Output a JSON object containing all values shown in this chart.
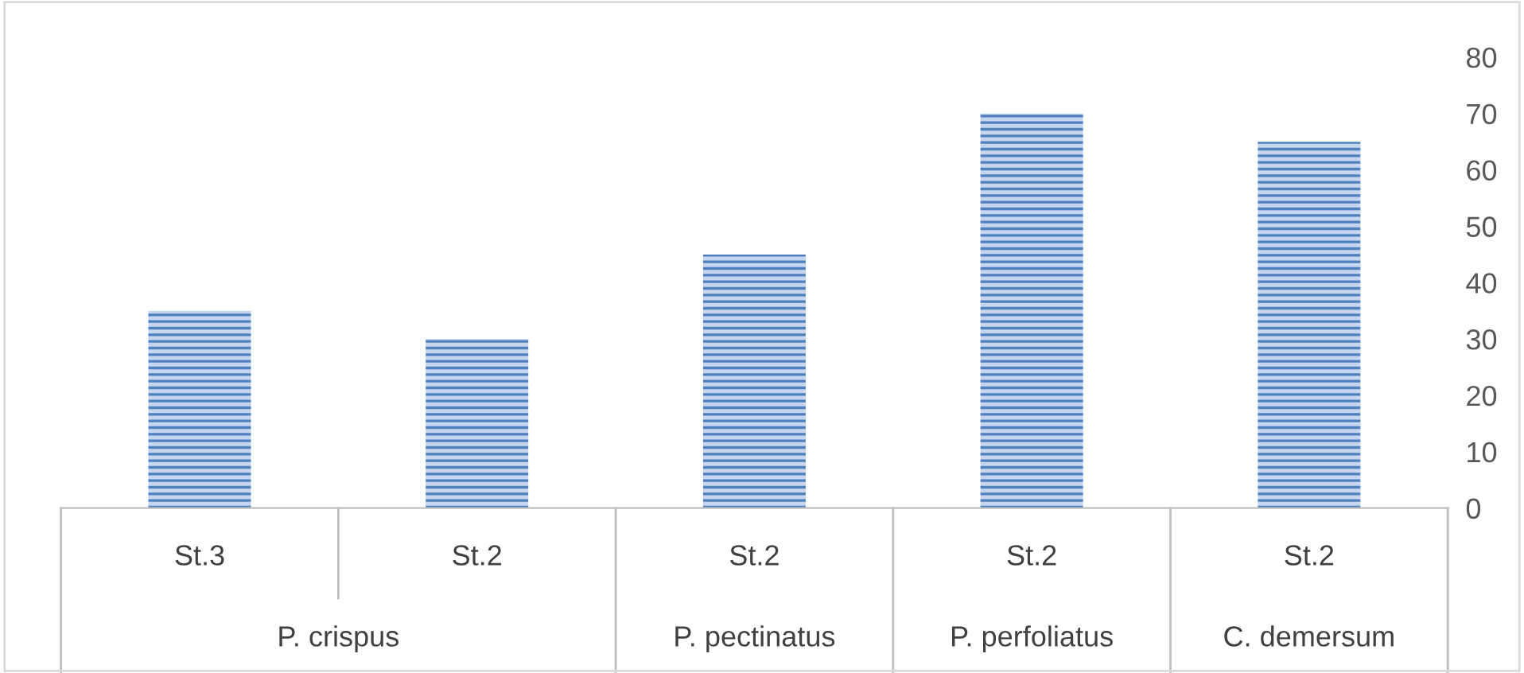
{
  "chart_data": {
    "type": "bar",
    "categories": [
      "St.3",
      "St.2",
      "St.2",
      "St.2",
      "St.2"
    ],
    "values": [
      35,
      30,
      45,
      70,
      65
    ],
    "color": "#4f81bd",
    "ylim": [
      0,
      80
    ],
    "yticks": [
      0,
      10,
      20,
      30,
      40,
      50,
      60,
      70,
      80
    ],
    "annotations": [
      "P. crispus",
      "P. pectinatus",
      "P. perfoliatus",
      "C. demersum"
    ]
  }
}
